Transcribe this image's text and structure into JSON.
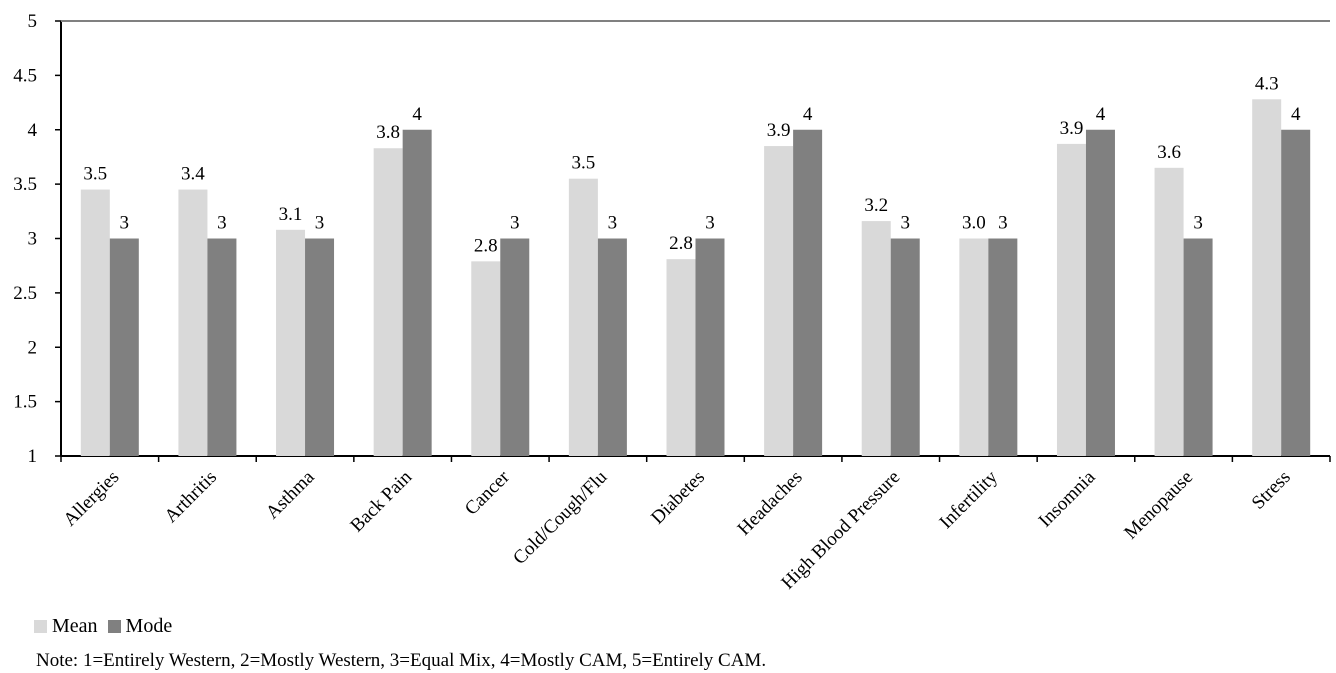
{
  "chart_data": {
    "type": "bar",
    "categories": [
      "Allergies",
      "Arthritis",
      "Asthma",
      "Back Pain",
      "Cancer",
      "Cold/Cough/Flu",
      "Diabetes",
      "Headaches",
      "High Blood Pressure",
      "Infertility",
      "Insomnia",
      "Menopause",
      "Stress"
    ],
    "series": [
      {
        "name": "Mean",
        "color": "#d9d9d9",
        "values": [
          3.45,
          3.45,
          3.08,
          3.83,
          2.79,
          3.55,
          2.81,
          3.85,
          3.16,
          3.0,
          3.87,
          3.65,
          4.28
        ],
        "labels": [
          "3.5",
          "3.4",
          "3.1",
          "3.8",
          "2.8",
          "3.5",
          "2.8",
          "3.9",
          "3.2",
          "3.0",
          "3.9",
          "3.6",
          "4.3"
        ]
      },
      {
        "name": "Mode",
        "color": "#808080",
        "values": [
          3,
          3,
          3,
          4,
          3,
          3,
          3,
          4,
          3,
          3,
          4,
          3,
          4
        ],
        "labels": [
          "3",
          "3",
          "3",
          "4",
          "3",
          "3",
          "3",
          "4",
          "3",
          "3",
          "4",
          "3",
          "4"
        ]
      }
    ],
    "ylim": [
      1,
      5
    ],
    "yticks": [
      "1",
      "1.5",
      "2",
      "2.5",
      "3",
      "3.5",
      "4",
      "4.5",
      "5"
    ],
    "title": "",
    "xlabel": "",
    "ylabel": "",
    "legend_position": "bottom-left",
    "grid": false
  },
  "legend": {
    "mean_label": "Mean",
    "mode_label": "Mode"
  },
  "note": "Note: 1=Entirely  Western, 2=Mostly Western, 3=Equal  Mix, 4=Mostly CAM, 5=Entirely  CAM."
}
